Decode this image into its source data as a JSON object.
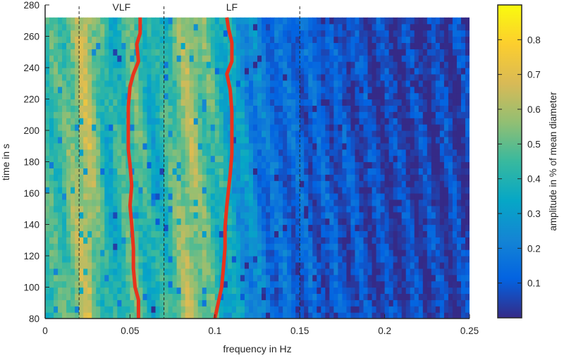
{
  "chart_data": {
    "type": "heatmap",
    "title": "",
    "xlabel": "frequency in Hz",
    "ylabel": "time in s",
    "xlim": [
      0,
      0.25
    ],
    "ylim": [
      80,
      280
    ],
    "x_ticks": [
      0,
      0.05,
      0.1,
      0.15,
      0.2,
      0.25
    ],
    "x_tick_labels": [
      "0",
      "0.05",
      "0.1",
      "0.15",
      "0.2",
      "0.25"
    ],
    "y_ticks": [
      80,
      100,
      120,
      140,
      160,
      180,
      200,
      220,
      240,
      260,
      280
    ],
    "y_tick_labels": [
      "80",
      "100",
      "120",
      "140",
      "160",
      "180",
      "200",
      "220",
      "240",
      "260",
      "280"
    ],
    "data_extent": {
      "x": [
        0,
        0.25
      ],
      "y": [
        80,
        272
      ]
    },
    "colorbar": {
      "label": "amplitude in % of mean diameter",
      "range": [
        0,
        0.9
      ],
      "ticks": [
        0.1,
        0.2,
        0.3,
        0.4,
        0.5,
        0.6,
        0.7,
        0.8
      ],
      "tick_labels": [
        "0.1",
        "0.2",
        "0.3",
        "0.4",
        "0.5",
        "0.6",
        "0.7",
        "0.8"
      ],
      "colormap": [
        "#352a87",
        "#0363e1",
        "#1485d4",
        "#06a7c6",
        "#38b99e",
        "#92bf73",
        "#d9ba56",
        "#fcce2e",
        "#f9fb0e"
      ]
    },
    "band_boundaries": [
      0.02,
      0.07,
      0.15
    ],
    "band_labels": [
      {
        "text": "VLF",
        "x": 0.045
      },
      {
        "text": "LF",
        "x": 0.11
      }
    ],
    "series": [
      {
        "color": "#e8341c",
        "points": [
          [
            0.055,
            80
          ],
          [
            0.055,
            92
          ],
          [
            0.053,
            100
          ],
          [
            0.052,
            112
          ],
          [
            0.052,
            125
          ],
          [
            0.051,
            140
          ],
          [
            0.05,
            152
          ],
          [
            0.051,
            165
          ],
          [
            0.05,
            178
          ],
          [
            0.049,
            188
          ],
          [
            0.049,
            200
          ],
          [
            0.049,
            215
          ],
          [
            0.05,
            228
          ],
          [
            0.052,
            236
          ],
          [
            0.055,
            244
          ],
          [
            0.054,
            255
          ],
          [
            0.056,
            262
          ],
          [
            0.056,
            272
          ]
        ]
      },
      {
        "color": "#e8341c",
        "points": [
          [
            0.1,
            80
          ],
          [
            0.102,
            90
          ],
          [
            0.104,
            100
          ],
          [
            0.105,
            112
          ],
          [
            0.106,
            125
          ],
          [
            0.106,
            138
          ],
          [
            0.107,
            152
          ],
          [
            0.108,
            162
          ],
          [
            0.109,
            172
          ],
          [
            0.11,
            185
          ],
          [
            0.11,
            198
          ],
          [
            0.11,
            212
          ],
          [
            0.109,
            226
          ],
          [
            0.107,
            236
          ],
          [
            0.11,
            244
          ],
          [
            0.11,
            256
          ],
          [
            0.108,
            265
          ],
          [
            0.107,
            272
          ]
        ]
      }
    ],
    "heatmap_profile": [
      {
        "freq_range": [
          0,
          0.02
        ],
        "level": 0.45
      },
      {
        "freq_range": [
          0.02,
          0.03
        ],
        "level": 0.65
      },
      {
        "freq_range": [
          0.03,
          0.045
        ],
        "level": 0.35
      },
      {
        "freq_range": [
          0.045,
          0.06
        ],
        "level": 0.5
      },
      {
        "freq_range": [
          0.06,
          0.07
        ],
        "level": 0.35
      },
      {
        "freq_range": [
          0.07,
          0.1
        ],
        "level": 0.6
      },
      {
        "freq_range": [
          0.1,
          0.115
        ],
        "level": 0.35
      },
      {
        "freq_range": [
          0.115,
          0.15
        ],
        "level": 0.15
      },
      {
        "freq_range": [
          0.15,
          0.25
        ],
        "level": 0.05
      }
    ]
  }
}
